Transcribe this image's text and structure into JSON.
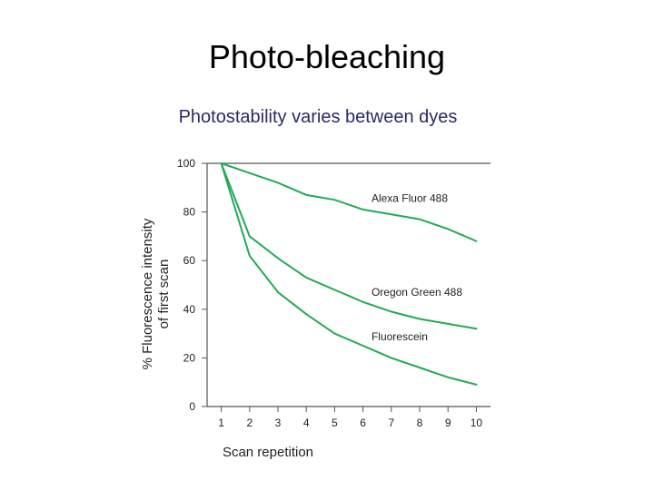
{
  "slide": {
    "title": "Photo-bleaching",
    "subtitle": "Photostability varies between dyes"
  },
  "chart_data": {
    "type": "line",
    "title": "",
    "xlabel": "Scan repetition",
    "ylabel": "% Fluorescence intensity of first scan",
    "ylabel_lines": [
      "% Fluorescence intensity",
      "of first scan"
    ],
    "x": [
      1,
      2,
      3,
      4,
      5,
      6,
      7,
      8,
      9,
      10
    ],
    "xlim": [
      0.5,
      10.5
    ],
    "ylim": [
      0,
      100
    ],
    "yticks": [
      0,
      20,
      40,
      60,
      80,
      100
    ],
    "grid": false,
    "line_color": "#22aa55",
    "series": [
      {
        "name": "Alexa Fluor 488",
        "values": [
          100,
          96,
          92,
          87,
          85,
          81,
          79,
          77,
          73,
          68
        ]
      },
      {
        "name": "Oregon Green 488",
        "values": [
          100,
          70,
          61,
          53,
          48,
          43,
          39,
          36,
          34,
          32
        ]
      },
      {
        "name": "Fluorescein",
        "values": [
          100,
          62,
          47,
          38,
          30,
          25,
          20,
          16,
          12,
          9
        ]
      }
    ]
  }
}
